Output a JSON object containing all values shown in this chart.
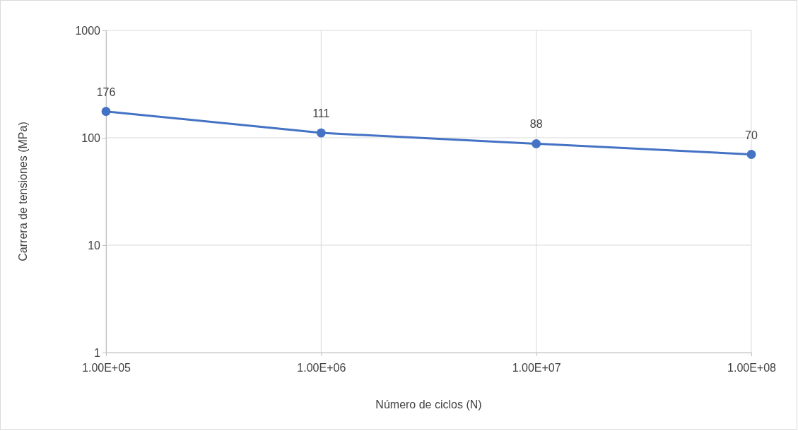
{
  "chart_data": {
    "type": "line",
    "xlabel": "Número de ciclos (N)",
    "ylabel": "Carrera de tensiones (MPa)",
    "x": [
      100000,
      1000000,
      10000000,
      100000000
    ],
    "series": [
      {
        "color": "#4472c4",
        "values": [
          176,
          111,
          88,
          70
        ]
      }
    ],
    "xlim": [
      100000,
      100000000
    ],
    "xticks": [
      {
        "value": 100000,
        "label": "1.00E+05"
      },
      {
        "value": 1000000,
        "label": "1.00E+06"
      },
      {
        "value": 10000000,
        "label": "1.00E+07"
      },
      {
        "value": 100000000,
        "label": "1.00E+08"
      }
    ],
    "ylim": [
      1,
      1000
    ],
    "yticks": [
      1,
      10,
      100,
      1000
    ],
    "log": "xy",
    "grid": true,
    "marker": "circle",
    "line_style": "solid",
    "data_labels": true
  }
}
